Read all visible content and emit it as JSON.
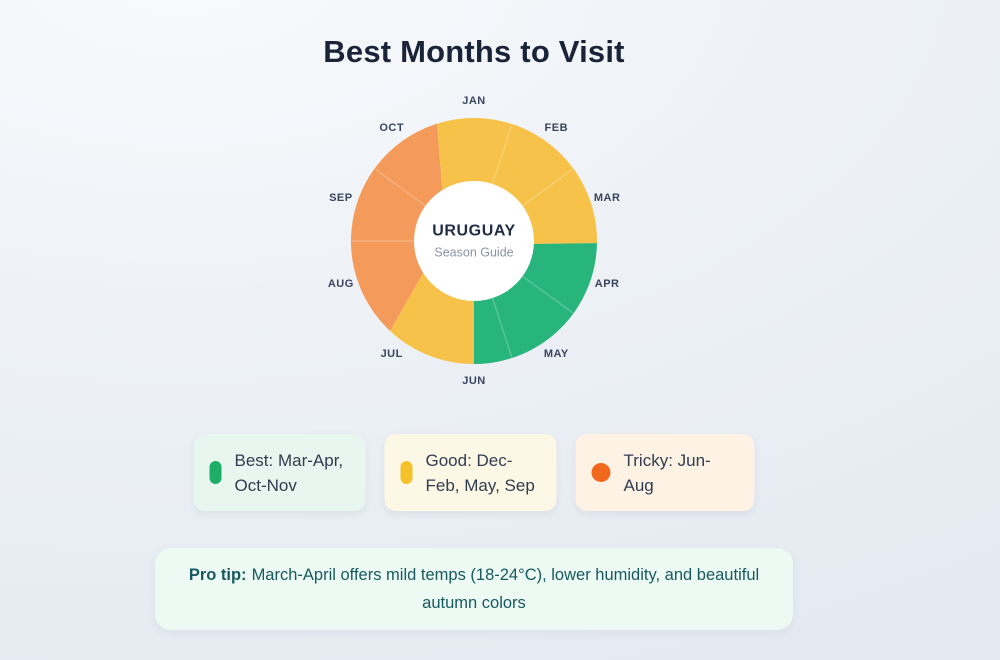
{
  "title": "Best Months to Visit",
  "chart_data": {
    "type": "pie",
    "subtype": "donut",
    "title": "Best Months to Visit",
    "center_label": "URUGUAY",
    "center_sublabel": "Season Guide",
    "categories": [
      "JAN",
      "FEB",
      "MAR",
      "APR",
      "MAY",
      "JUN",
      "JUL",
      "AUG",
      "SEP",
      "OCT"
    ],
    "label_angle_step_deg": 36,
    "equal_slice_per_month": true,
    "segments": [
      {
        "season": "good",
        "color": "#F6C249",
        "start_inner_deg": 327,
        "start_outer_deg": 342.5,
        "end_inner_deg": 93,
        "end_outer_deg": 91
      },
      {
        "season": "best",
        "color": "#28B57B",
        "start_inner_deg": 93,
        "start_outer_deg": 91,
        "end_inner_deg": 180,
        "end_outer_deg": 180
      },
      {
        "season": "good",
        "color": "#F6C249",
        "start_inner_deg": 180,
        "start_outer_deg": 180,
        "end_inner_deg": 239,
        "end_outer_deg": 223
      },
      {
        "season": "tricky",
        "color": "#F49A5A",
        "start_inner_deg": 239,
        "start_outer_deg": 223,
        "end_inner_deg": 327,
        "end_outer_deg": 342.5
      }
    ],
    "seam_angles_deg": [
      18,
      54,
      126,
      162,
      270,
      306
    ],
    "geometry": {
      "outer_radius": 123,
      "inner_radius": 58,
      "white_circle_radius": 60,
      "label_radius": 140
    },
    "month_label_color": "#39455e"
  },
  "legend": {
    "cards": [
      {
        "label": "Best: Mar-Apr, Oct-Nov",
        "bg": "#E7F7EF",
        "marker_color": "#1FAD68",
        "marker_shape": "pill"
      },
      {
        "label": "Good: Dec-Feb, May, Sep",
        "bg": "#FDF8E5",
        "marker_color": "#F5C22B",
        "marker_shape": "pill"
      },
      {
        "label": "Tricky: Jun-Aug",
        "bg": "#FDF2E4",
        "marker_color": "#F2691D",
        "marker_shape": "circle"
      }
    ]
  },
  "protip": {
    "prefix": "Pro tip:",
    "text": "March-April offers mild temps (18-24°C), lower humidity, and beautiful autumn colors",
    "bg": "#EDFAF4",
    "text_color": "#17595E"
  }
}
